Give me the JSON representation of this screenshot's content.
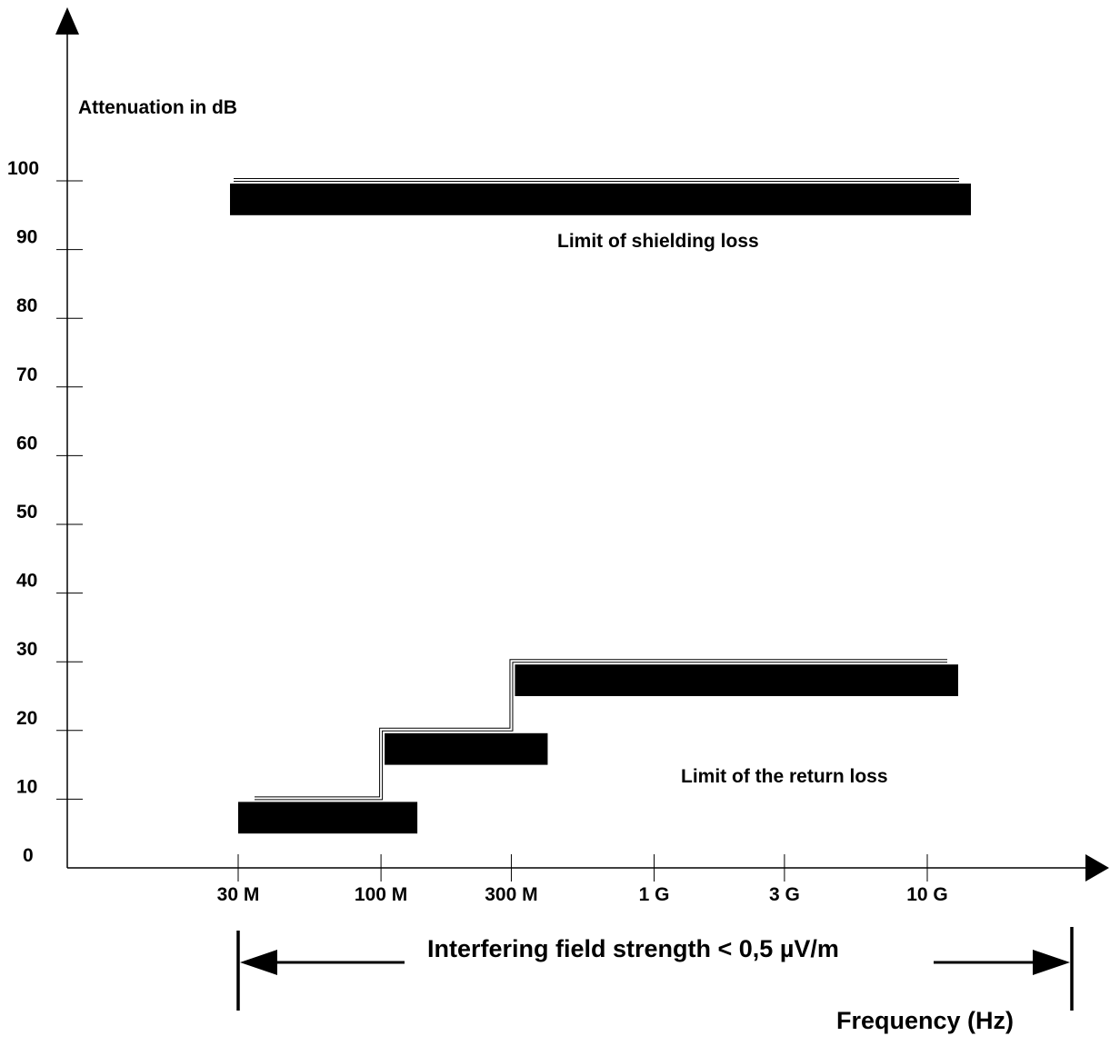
{
  "chart_data": {
    "type": "area",
    "ylabel": "Attenuation in dB",
    "xlabel": "Frequency  (Hz)",
    "yticks": [
      "0",
      "10",
      "20",
      "30",
      "40",
      "50",
      "60",
      "70",
      "80",
      "90",
      "100"
    ],
    "xticks": [
      "30 M",
      "100 M",
      "300 M",
      "1 G",
      "3 G",
      "10 G"
    ],
    "y_scale": "linear",
    "x_scale": "log",
    "ylim": [
      0,
      100
    ],
    "series": [
      {
        "name": "Limit of shielding loss",
        "step_band": [
          {
            "x_from": 30,
            "x_to": 10000,
            "y_low": 95,
            "y_high": 100
          }
        ],
        "limit_line": [
          {
            "x_from": 30,
            "x_to": 10000,
            "y": 100
          }
        ]
      },
      {
        "name": "Limit of the return loss",
        "step_band": [
          {
            "x_from": 30,
            "x_to": 100,
            "y_low": 5,
            "y_high": 10
          },
          {
            "x_from": 100,
            "x_to": 300,
            "y_low": 15,
            "y_high": 20
          },
          {
            "x_from": 300,
            "x_to": 10000,
            "y_low": 25,
            "y_high": 30
          }
        ],
        "limit_line": [
          {
            "x_from": 30,
            "x_to": 100,
            "y": 10
          },
          {
            "x_from": 100,
            "x_to": 300,
            "y": 20
          },
          {
            "x_from": 300,
            "x_to": 10000,
            "y": 30
          }
        ]
      }
    ],
    "annotations": {
      "shielding_label": "Limit of shielding loss",
      "return_label": "Limit of the return loss",
      "range_label": "Interfering field strength <  0,5 µV/m"
    }
  }
}
